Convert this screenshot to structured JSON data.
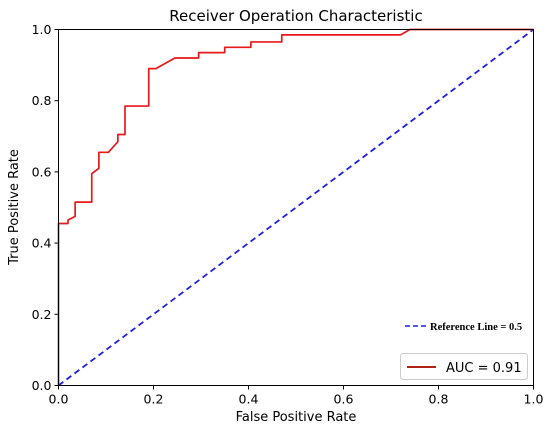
{
  "chart_data": {
    "type": "line",
    "title": "Receiver Operation Characteristic",
    "xlabel": "False Positive Rate",
    "ylabel": "True Positive Rate",
    "xlim": [
      0,
      1
    ],
    "ylim": [
      0,
      1
    ],
    "xticks": [
      "0.0",
      "0.2",
      "0.4",
      "0.6",
      "0.8",
      "1.0"
    ],
    "yticks": [
      "0.0",
      "0.2",
      "0.4",
      "0.6",
      "0.8",
      "1.0"
    ],
    "grid": false,
    "series": [
      {
        "name": "AUC = 0.91",
        "color": "#e8191a",
        "style": "solid",
        "x": [
          0,
          0,
          0.02,
          0.02,
          0.035,
          0.035,
          0.07,
          0.07,
          0.085,
          0.085,
          0.105,
          0.125,
          0.125,
          0.14,
          0.14,
          0.19,
          0.19,
          0.205,
          0.245,
          0.295,
          0.295,
          0.35,
          0.35,
          0.405,
          0.405,
          0.47,
          0.47,
          0.72,
          0.74,
          1.0
        ],
        "y": [
          0,
          0.455,
          0.455,
          0.465,
          0.475,
          0.515,
          0.515,
          0.595,
          0.61,
          0.655,
          0.655,
          0.685,
          0.705,
          0.705,
          0.785,
          0.785,
          0.89,
          0.89,
          0.92,
          0.92,
          0.935,
          0.935,
          0.95,
          0.95,
          0.965,
          0.965,
          0.985,
          0.985,
          1.0,
          1.0
        ]
      },
      {
        "name": "Reference Line = 0.5",
        "color": "#1f1fe0",
        "style": "dashed",
        "x": [
          0,
          1
        ],
        "y": [
          0,
          1
        ]
      }
    ],
    "legend": {
      "reference_label": "Reference Line = 0.5",
      "auc_label": "AUC = 0.91",
      "placement": "bottom-right"
    }
  }
}
